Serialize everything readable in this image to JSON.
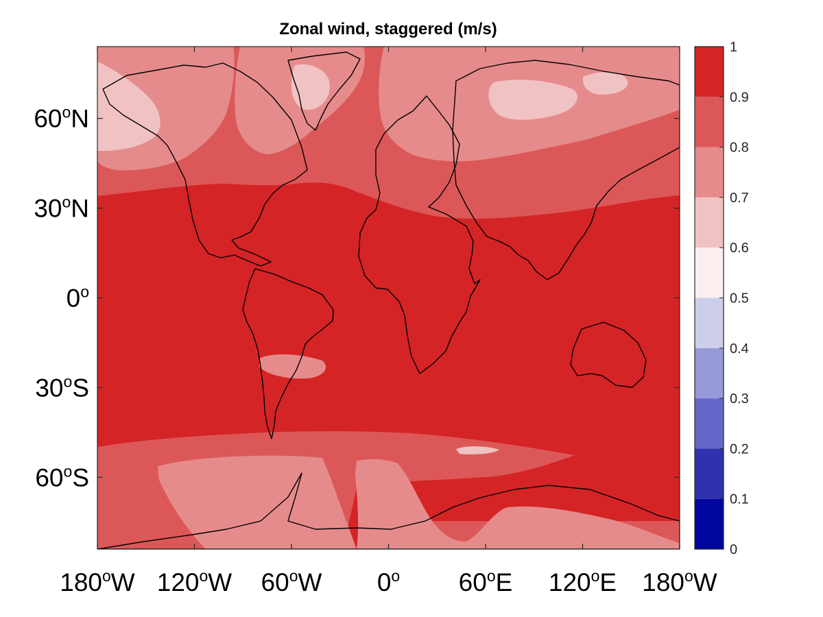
{
  "title": "Zonal wind, staggered (m/s)",
  "map": {
    "projection": "equirectangular",
    "lon_range": [
      -180,
      180
    ],
    "lat_range": [
      -84,
      84
    ],
    "lat_ticks": [
      {
        "value": 60,
        "num": "60",
        "deg": "o",
        "hem": "N"
      },
      {
        "value": 30,
        "num": "30",
        "deg": "o",
        "hem": "N"
      },
      {
        "value": 0,
        "num": "0",
        "deg": "o",
        "hem": ""
      },
      {
        "value": -30,
        "num": "30",
        "deg": "o",
        "hem": "S"
      },
      {
        "value": -60,
        "num": "60",
        "deg": "o",
        "hem": "S"
      }
    ],
    "lon_ticks": [
      {
        "value": -180,
        "num": "180",
        "deg": "o",
        "hem": "W"
      },
      {
        "value": -120,
        "num": "120",
        "deg": "o",
        "hem": "W"
      },
      {
        "value": -60,
        "num": "60",
        "deg": "o",
        "hem": "W"
      },
      {
        "value": 0,
        "num": "0",
        "deg": "o",
        "hem": ""
      },
      {
        "value": 60,
        "num": "60",
        "deg": "o",
        "hem": "E"
      },
      {
        "value": 120,
        "num": "120",
        "deg": "o",
        "hem": "E"
      },
      {
        "value": 180,
        "num": "180",
        "deg": "o",
        "hem": "W"
      }
    ],
    "dominant_level_color": "#d42425"
  },
  "colorbar": {
    "levels": [
      {
        "from": 0.0,
        "to": 0.1,
        "color": "#00059e"
      },
      {
        "from": 0.1,
        "to": 0.2,
        "color": "#2f32ad"
      },
      {
        "from": 0.2,
        "to": 0.3,
        "color": "#6566c7"
      },
      {
        "from": 0.3,
        "to": 0.4,
        "color": "#9899d8"
      },
      {
        "from": 0.4,
        "to": 0.5,
        "color": "#ccceea"
      },
      {
        "from": 0.5,
        "to": 0.6,
        "color": "#fbeff0"
      },
      {
        "from": 0.6,
        "to": 0.7,
        "color": "#f1c2c3"
      },
      {
        "from": 0.7,
        "to": 0.8,
        "color": "#e68b8c"
      },
      {
        "from": 0.8,
        "to": 0.9,
        "color": "#dc5858"
      },
      {
        "from": 0.9,
        "to": 1.0,
        "color": "#d42425"
      }
    ],
    "tick_labels": [
      "0",
      "0.1",
      "0.2",
      "0.3",
      "0.4",
      "0.5",
      "0.6",
      "0.7",
      "0.8",
      "0.9",
      "1"
    ],
    "tick_values": [
      0,
      0.1,
      0.2,
      0.3,
      0.4,
      0.5,
      0.6,
      0.7,
      0.8,
      0.9,
      1.0
    ]
  }
}
